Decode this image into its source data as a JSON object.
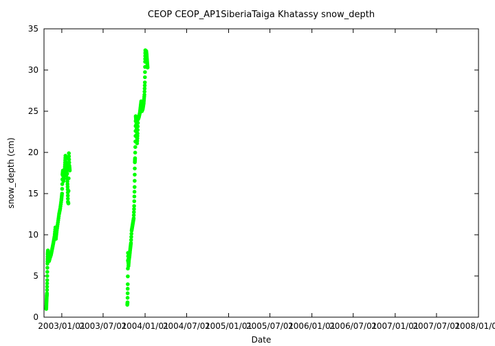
{
  "chart_data": {
    "type": "scatter",
    "title": "CEOP CEOP_AP1SiberiaTaiga Khatassy  snow_depth",
    "xlabel": "Date",
    "ylabel": "snow_depth (cm)",
    "xlim": [
      "2002-10-15",
      "2008-01-01"
    ],
    "ylim": [
      0,
      35
    ],
    "x_ticks": [
      "2003/01/01",
      "2003/07/01",
      "2004/01/01",
      "2004/07/01",
      "2005/01/01",
      "2005/07/01",
      "2006/01/01",
      "2006/07/01",
      "2007/01/01",
      "2007/07/01",
      "2008/01/01"
    ],
    "y_ticks": [
      "0",
      "5",
      "10",
      "15",
      "20",
      "25",
      "30",
      "35"
    ],
    "grid": false,
    "legend": "none",
    "colors": {
      "series": "#00ff00",
      "axis": "#000000"
    },
    "series": [
      {
        "values": [
          [
            "2002-10-25",
            1.0
          ],
          [
            "2002-10-26",
            1.8
          ],
          [
            "2002-10-27",
            2.5
          ],
          [
            "2002-10-28",
            2.9
          ],
          [
            "2002-10-29",
            4.5
          ],
          [
            "2002-10-30",
            6.5
          ],
          [
            "2002-10-31",
            7.6
          ],
          [
            "2002-11-01",
            8.1
          ],
          [
            "2002-11-03",
            7.0
          ],
          [
            "2002-11-06",
            6.8
          ],
          [
            "2002-11-10",
            7.2
          ],
          [
            "2002-11-15",
            7.6
          ],
          [
            "2002-11-20",
            8.3
          ],
          [
            "2002-11-25",
            9.0
          ],
          [
            "2002-11-30",
            9.8
          ],
          [
            "2002-12-04",
            10.9
          ],
          [
            "2002-12-06",
            9.5
          ],
          [
            "2002-12-10",
            10.5
          ],
          [
            "2002-12-15",
            11.5
          ],
          [
            "2002-12-20",
            12.5
          ],
          [
            "2002-12-25",
            13.2
          ],
          [
            "2002-12-30",
            14.2
          ],
          [
            "2003-01-02",
            15.0
          ],
          [
            "2003-01-04",
            17.3
          ],
          [
            "2003-01-06",
            17.8
          ],
          [
            "2003-01-08",
            16.5
          ],
          [
            "2003-01-10",
            17.0
          ],
          [
            "2003-01-13",
            17.5
          ],
          [
            "2003-01-15",
            18.5
          ],
          [
            "2003-01-17",
            19.6
          ],
          [
            "2003-01-19",
            18.0
          ],
          [
            "2003-01-21",
            17.2
          ],
          [
            "2003-01-23",
            19.3
          ],
          [
            "2003-01-25",
            16.8
          ],
          [
            "2003-01-27",
            15.5
          ],
          [
            "2003-01-28",
            14.0
          ],
          [
            "2003-01-30",
            13.8
          ],
          [
            "2003-02-01",
            19.9
          ],
          [
            "2003-02-03",
            18.4
          ],
          [
            "2003-02-05",
            17.8
          ],
          [
            "2003-10-15",
            1.5
          ],
          [
            "2003-10-16",
            1.8
          ],
          [
            "2003-10-17",
            4.0
          ],
          [
            "2003-10-18",
            7.8
          ],
          [
            "2003-10-20",
            6.2
          ],
          [
            "2003-10-22",
            6.9
          ],
          [
            "2003-10-25",
            7.5
          ],
          [
            "2003-10-28",
            8.3
          ],
          [
            "2003-10-31",
            9.0
          ],
          [
            "2003-11-03",
            10.5
          ],
          [
            "2003-11-06",
            11.0
          ],
          [
            "2003-11-09",
            11.5
          ],
          [
            "2003-11-12",
            12.0
          ],
          [
            "2003-11-14",
            13.5
          ],
          [
            "2003-11-16",
            15.8
          ],
          [
            "2003-11-17",
            18.8
          ],
          [
            "2003-11-18",
            19.3
          ],
          [
            "2003-11-20",
            22.0
          ],
          [
            "2003-11-21",
            24.4
          ],
          [
            "2003-11-23",
            23.7
          ],
          [
            "2003-11-25",
            22.5
          ],
          [
            "2003-11-27",
            21.1
          ],
          [
            "2003-11-29",
            22.3
          ],
          [
            "2003-12-01",
            24.0
          ],
          [
            "2003-12-05",
            24.3
          ],
          [
            "2003-12-09",
            24.8
          ],
          [
            "2003-12-12",
            25.5
          ],
          [
            "2003-12-15",
            26.2
          ],
          [
            "2003-12-18",
            25.0
          ],
          [
            "2003-12-22",
            25.3
          ],
          [
            "2003-12-26",
            26.0
          ],
          [
            "2003-12-29",
            27.0
          ],
          [
            "2003-12-31",
            28.5
          ],
          [
            "2004-01-01",
            31.0
          ],
          [
            "2004-01-02",
            32.4
          ],
          [
            "2004-01-04",
            31.5
          ],
          [
            "2004-01-06",
            32.3
          ],
          [
            "2004-01-08",
            31.8
          ],
          [
            "2004-01-10",
            31.0
          ],
          [
            "2004-01-12",
            30.3
          ]
        ]
      }
    ]
  }
}
